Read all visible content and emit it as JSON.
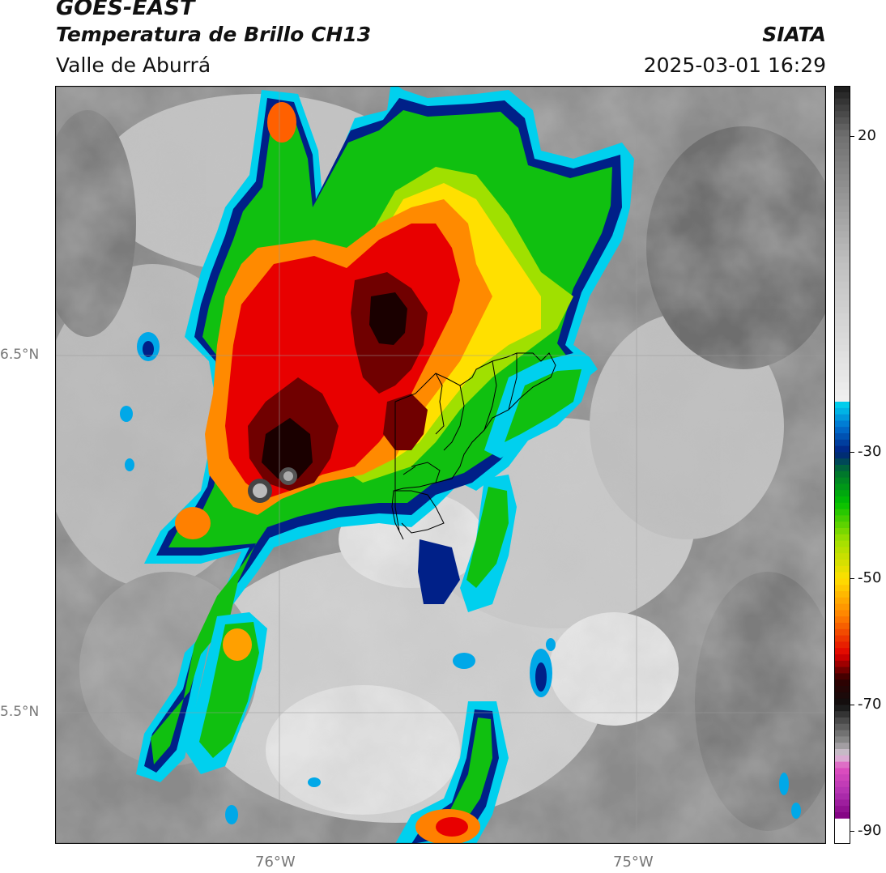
{
  "header": {
    "satellite": "GOES-EAST",
    "product": "Temperatura de Brillo CH13",
    "region": "Valle de Aburrá",
    "organization": "SIATA",
    "datetime": "2025-03-01 16:29"
  },
  "map": {
    "lat_ticks": [
      {
        "value": 6.5,
        "label": "6.5°N"
      },
      {
        "value": 5.5,
        "label": "5.5°N"
      }
    ],
    "lon_ticks": [
      {
        "value": -76,
        "label": "76°W"
      },
      {
        "value": -75,
        "label": "75°W"
      }
    ],
    "gridlines": true
  },
  "colorbar": {
    "range": [
      -92,
      28
    ],
    "ticks": [
      {
        "value": 20,
        "label": "20"
      },
      {
        "value": -30,
        "label": "-30"
      },
      {
        "value": -50,
        "label": "-50"
      },
      {
        "value": -70,
        "label": "-70"
      },
      {
        "value": -90,
        "label": "-90"
      }
    ],
    "colors": {
      "warm_gray_dark": "#1a1a1a",
      "warm_gray_light": "#f0f0f0",
      "cyan": "#00d8f0",
      "navy": "#002080",
      "green": "#00c000",
      "yellow": "#ffe000",
      "orange": "#ff8000",
      "red": "#e00000",
      "dark_red": "#300000",
      "pink": "#e050c0",
      "purple": "#800080"
    }
  }
}
